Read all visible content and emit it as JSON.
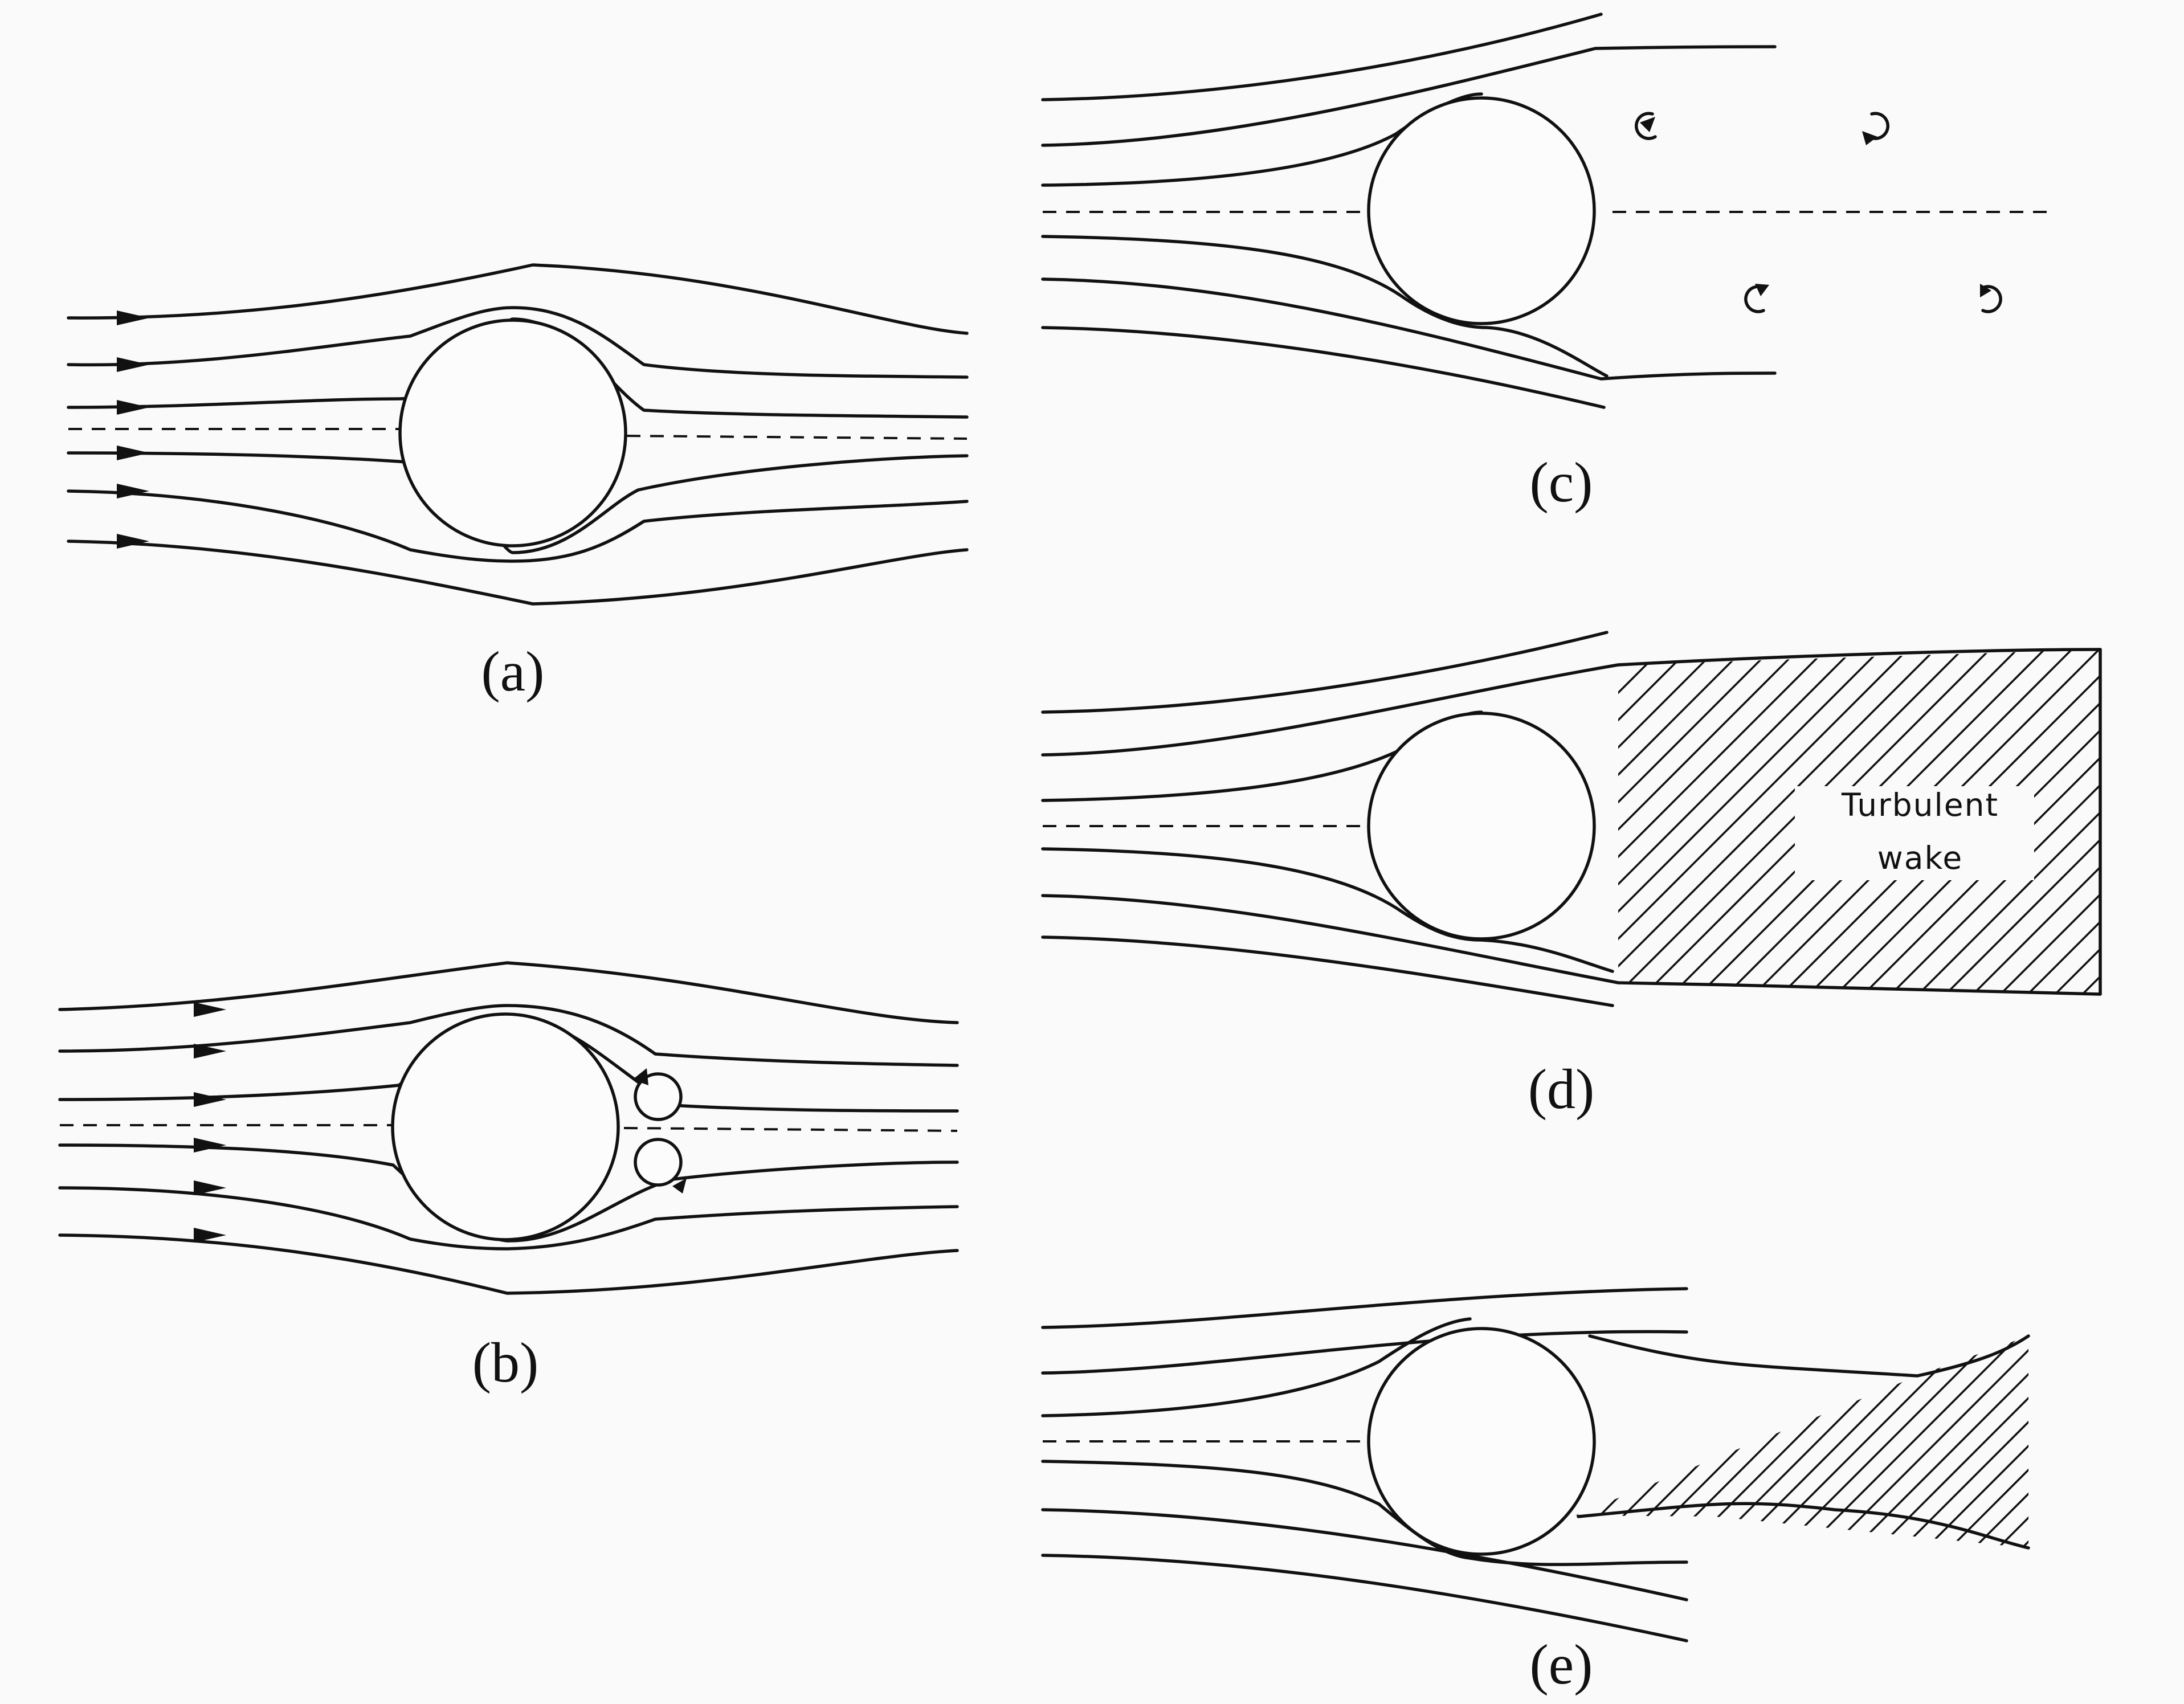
{
  "panels": [
    {
      "id": "a",
      "label": "(a)"
    },
    {
      "id": "b",
      "label": "(b)"
    },
    {
      "id": "c",
      "label": "(c)"
    },
    {
      "id": "d",
      "label": "(d)",
      "wake_text": [
        "Turbulent",
        "wake"
      ]
    },
    {
      "id": "e",
      "label": "(e)"
    }
  ]
}
